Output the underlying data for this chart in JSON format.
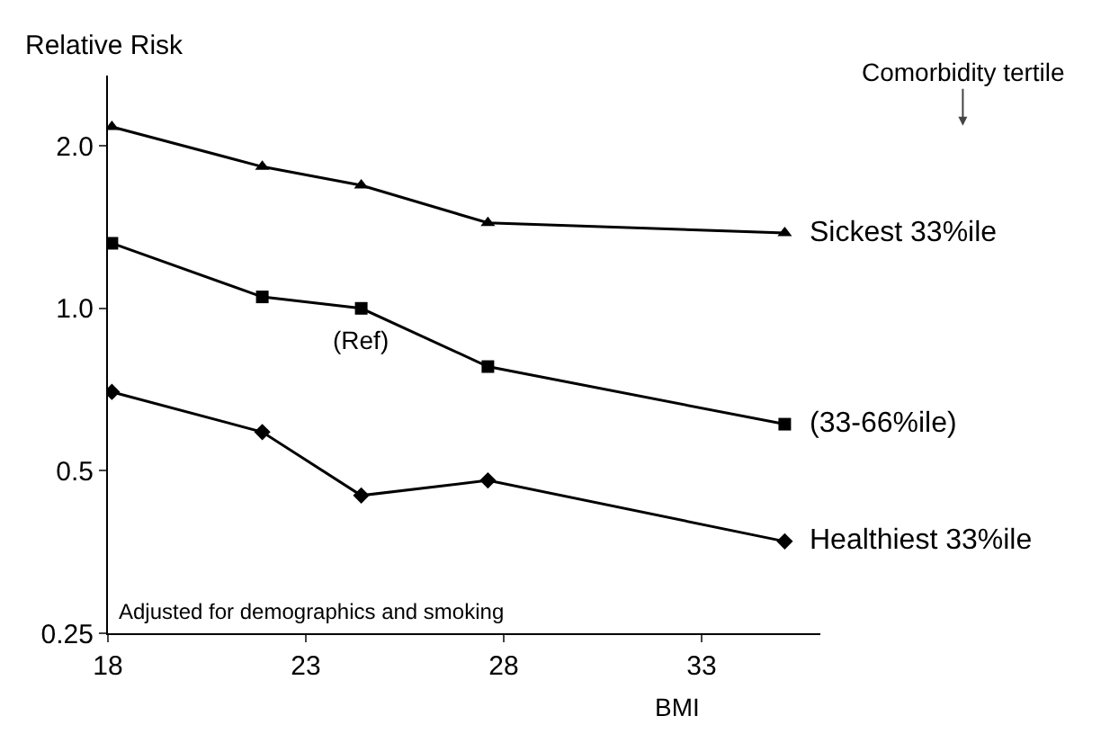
{
  "chart_data": {
    "type": "line",
    "xlabel": "BMI",
    "ylabel": "Relative Risk",
    "log": "y",
    "grid": false,
    "legend": false,
    "legend_title": "Comorbidity tertile",
    "xlim": [
      18,
      36
    ],
    "xticks": [
      18,
      23,
      28,
      33
    ],
    "ylim": [
      0.25,
      2.7
    ],
    "yticks": [
      0.25,
      0.5,
      {
        "value": 1,
        "label": "1.0"
      },
      {
        "value": 2,
        "label": "2.0"
      }
    ],
    "x": [
      18.1,
      21.9,
      24.4,
      27.6,
      35.1
    ],
    "series": [
      {
        "name": "Sickest 33%ile",
        "color": "#000000",
        "marker": "triangle",
        "values": [
          2.17,
          1.83,
          1.69,
          1.44,
          1.38
        ]
      },
      {
        "name": "(33-66%ile)",
        "color": "#000000",
        "marker": "square",
        "values": [
          1.32,
          1.05,
          1.0,
          0.78,
          0.61
        ]
      },
      {
        "name": "Healthiest 33%ile",
        "color": "#000000",
        "marker": "diamond",
        "values": [
          0.7,
          0.59,
          0.45,
          0.48,
          0.37
        ]
      }
    ],
    "annotations": [
      {
        "text": "(Ref)",
        "x": 24.4,
        "y": 1.0
      },
      "Adjusted for demographics and smoking"
    ]
  }
}
